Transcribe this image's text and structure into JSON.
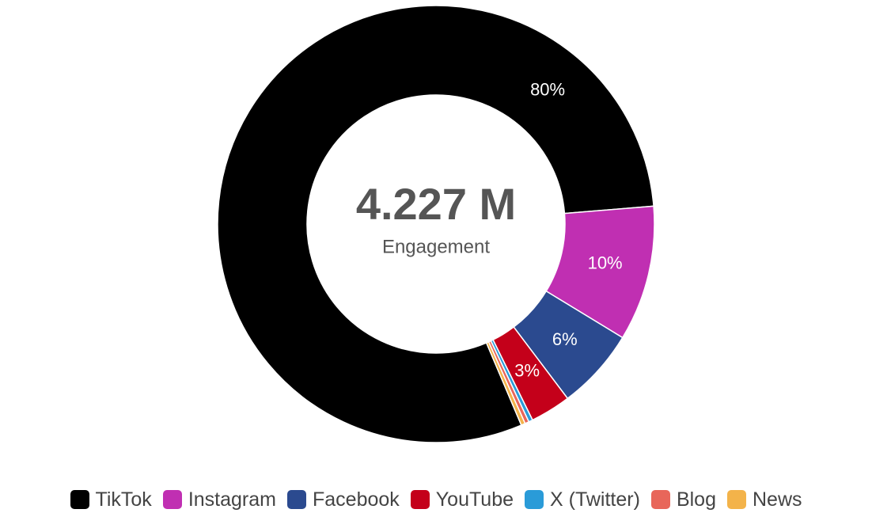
{
  "chart_data": {
    "type": "pie",
    "donut": true,
    "center": {
      "value": "4.227 M",
      "caption": "Engagement"
    },
    "categories": [
      "TikTok",
      "Instagram",
      "Facebook",
      "YouTube",
      "X (Twitter)",
      "Blog",
      "News"
    ],
    "values": [
      80,
      10,
      6,
      3,
      0.3,
      0.3,
      0.3
    ],
    "colors": [
      "#000000",
      "#c02fb2",
      "#2b4a8f",
      "#c4001a",
      "#2a9bd8",
      "#e8665a",
      "#f3b34a"
    ],
    "slice_labels": [
      "80%",
      "10%",
      "6%",
      "3%",
      "",
      "",
      ""
    ],
    "legend_position": "bottom"
  }
}
